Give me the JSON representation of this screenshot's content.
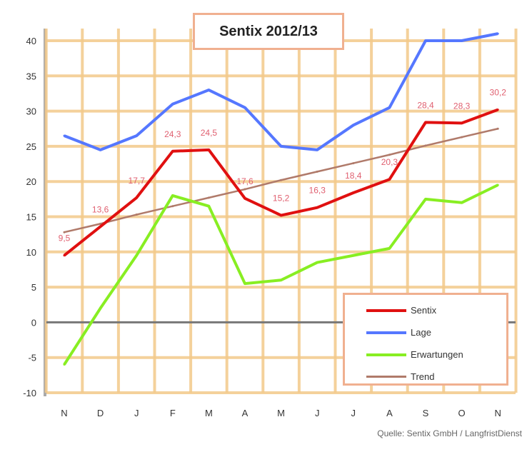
{
  "chart_data": {
    "type": "line",
    "title": "Sentix 2012/13",
    "categories": [
      "N",
      "D",
      "J",
      "F",
      "M",
      "A",
      "M",
      "J",
      "J",
      "A",
      "S",
      "O",
      "N"
    ],
    "ylim": [
      -10,
      40
    ],
    "yticks": [
      40,
      35,
      30,
      25,
      20,
      15,
      10,
      5,
      0,
      -5,
      -10
    ],
    "grid": true,
    "legend_position": "bottom-right",
    "series": [
      {
        "name": "Sentix",
        "color": "#e01010",
        "values": [
          9.5,
          13.6,
          17.7,
          24.3,
          24.5,
          17.6,
          15.2,
          16.3,
          18.4,
          20.3,
          28.4,
          28.3,
          30.2
        ],
        "labels": [
          "9,5",
          "13,6",
          "17,7",
          "24,3",
          "24,5",
          "17,6",
          "15,2",
          "16,3",
          "18,4",
          "20,3",
          "28,4",
          "28,3",
          "30,2"
        ]
      },
      {
        "name": "Lage",
        "color": "#5577ff",
        "values": [
          26.5,
          24.5,
          26.5,
          31,
          33,
          30.5,
          25,
          24.5,
          28,
          30.5,
          40,
          40,
          41
        ]
      },
      {
        "name": "Erwartungen",
        "color": "#88ee22",
        "values": [
          -6,
          2,
          9.5,
          18,
          16.5,
          5.5,
          6,
          8.5,
          9.5,
          10.5,
          17.5,
          17,
          19.5
        ]
      },
      {
        "name": "Trend",
        "color": "#b07a6a",
        "values": [
          12.8,
          14.0,
          15.3,
          16.5,
          17.7,
          18.9,
          20.2,
          21.4,
          22.6,
          23.8,
          25.1,
          26.3,
          27.5
        ]
      }
    ],
    "source": "Quelle: Sentix GmbH / LangfristDienst"
  }
}
